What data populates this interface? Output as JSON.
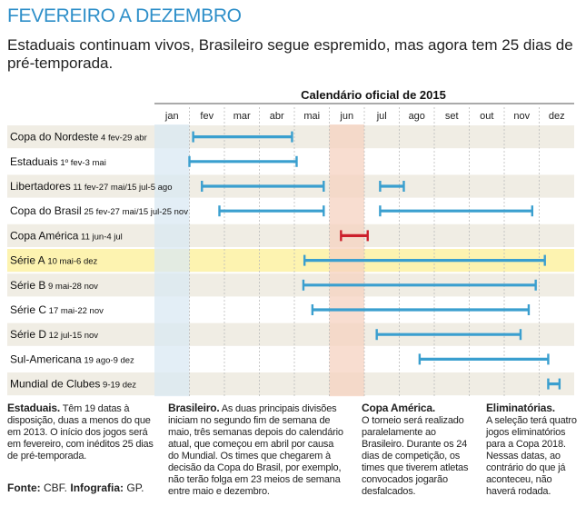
{
  "headline": "FEVEREIRO A DEZEMBRO",
  "subtitle": "Estaduais continuam vivos, Brasileiro segue espremido, mas agora tem 25 dias de pré-temporada.",
  "colors": {
    "accent": "#2e8fc9",
    "bar": "#3a9fcf",
    "copa_america_bar": "#cc1f2b",
    "row_band": "#f0ede4",
    "serie_a_band": "#fdf3b0",
    "january_band": "#d9e8f3",
    "june_band": "#f6d2c0",
    "grid": "#bbbbbb"
  },
  "chart_data": {
    "type": "gantt",
    "title": "Calendário oficial de 2015",
    "months": [
      "jan",
      "fev",
      "mar",
      "abr",
      "mai",
      "jun",
      "jul",
      "ago",
      "set",
      "out",
      "nov",
      "dez"
    ],
    "highlighted_months": [
      "jan",
      "jun"
    ],
    "rows": [
      {
        "name": "Copa do Nordeste",
        "dates": "4 fev-29 abr",
        "segments": [
          {
            "start": "2015-02-04",
            "end": "2015-04-29"
          }
        ]
      },
      {
        "name": "Estaduais",
        "dates": "1º fev-3 mai",
        "segments": [
          {
            "start": "2015-02-01",
            "end": "2015-05-03"
          }
        ]
      },
      {
        "name": "Libertadores",
        "dates": "11 fev-27 mai/15 jul-5 ago",
        "segments": [
          {
            "start": "2015-02-11",
            "end": "2015-05-27"
          },
          {
            "start": "2015-07-15",
            "end": "2015-08-05"
          }
        ]
      },
      {
        "name": "Copa do Brasil",
        "dates": "25 fev-27 mai/15 jul-25 nov",
        "segments": [
          {
            "start": "2015-02-25",
            "end": "2015-05-27"
          },
          {
            "start": "2015-07-15",
            "end": "2015-11-25"
          }
        ]
      },
      {
        "name": "Copa América",
        "dates": "11 jun-4 jul",
        "segments": [
          {
            "start": "2015-06-11",
            "end": "2015-07-04"
          }
        ],
        "highlight": "red"
      },
      {
        "name": "Série A",
        "dates": "10 mai-6 dez",
        "segments": [
          {
            "start": "2015-05-10",
            "end": "2015-12-06"
          }
        ],
        "band": "yellow"
      },
      {
        "name": "Série B",
        "dates": "9 mai-28 nov",
        "segments": [
          {
            "start": "2015-05-09",
            "end": "2015-11-28"
          }
        ]
      },
      {
        "name": "Série C",
        "dates": "17 mai-22 nov",
        "segments": [
          {
            "start": "2015-05-17",
            "end": "2015-11-22"
          }
        ]
      },
      {
        "name": "Série D",
        "dates": "12 jul-15 nov",
        "segments": [
          {
            "start": "2015-07-12",
            "end": "2015-11-15"
          }
        ]
      },
      {
        "name": "Sul-Americana",
        "dates": "19 ago-9 dez",
        "segments": [
          {
            "start": "2015-08-19",
            "end": "2015-12-09"
          }
        ]
      },
      {
        "name": "Mundial de Clubes",
        "dates": "9-19 dez",
        "segments": [
          {
            "start": "2015-12-09",
            "end": "2015-12-19"
          }
        ]
      }
    ]
  },
  "notes": [
    {
      "title": "Estaduais.",
      "text": "Têm 19 datas à disposição, duas a menos do que em 2013. O início dos jogos será em fevereiro, com inéditos 25 dias de pré-temporada."
    },
    {
      "title": "Brasileiro.",
      "text": "As duas principais divisões iniciam no segundo fim de semana de maio, três semanas depois do calendário atual, que começou em abril por causa do Mundial. Os times que chegarem à decisão da Copa do Brasil, por exemplo, não terão folga em 23 meios de semana entre maio e dezembro."
    },
    {
      "title": "Copa América.",
      "text": "O torneio será realizado paralelamente ao Brasileiro. Durante os 24 dias de competição, os times que tiverem atletas convocados jogarão desfalcados."
    },
    {
      "title": "Eliminatórias.",
      "text": "A seleção terá quatro jogos eliminatórios para a Copa 2018. Nessas datas, ao contrário do que já aconteceu, não haverá rodada."
    }
  ],
  "source": {
    "label": "Fonte:",
    "value": "CBF.",
    "credit_label": "Infografia:",
    "credit_value": "GP."
  }
}
